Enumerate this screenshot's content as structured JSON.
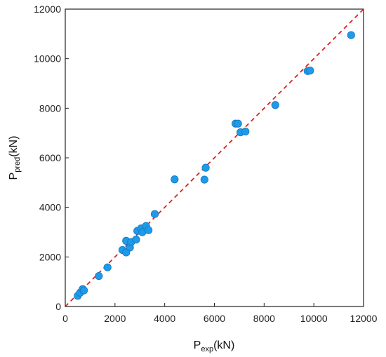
{
  "chart_data": {
    "type": "scatter",
    "title": "",
    "xlabel_main": "P",
    "xlabel_sub": "exp",
    "xlabel_unit": "(kN)",
    "ylabel_main": "P",
    "ylabel_sub": "pred",
    "ylabel_unit": "(kN)",
    "xlim": [
      0,
      12000
    ],
    "ylim": [
      0,
      12000
    ],
    "x_ticks": [
      "0",
      "2000",
      "4000",
      "6000",
      "8000",
      "10000",
      "12000"
    ],
    "y_ticks": [
      "0",
      "2000",
      "4000",
      "6000",
      "8000",
      "10000",
      "12000"
    ],
    "grid": false,
    "reference_line": {
      "type": "y=x",
      "style": "dashed",
      "color": "#e02020"
    },
    "point_color": "#1e9ae8",
    "points": [
      {
        "x": 500,
        "y": 430
      },
      {
        "x": 600,
        "y": 560
      },
      {
        "x": 700,
        "y": 700
      },
      {
        "x": 750,
        "y": 650
      },
      {
        "x": 1350,
        "y": 1230
      },
      {
        "x": 1700,
        "y": 1580
      },
      {
        "x": 2300,
        "y": 2280
      },
      {
        "x": 2450,
        "y": 2180
      },
      {
        "x": 2450,
        "y": 2650
      },
      {
        "x": 2600,
        "y": 2380
      },
      {
        "x": 2650,
        "y": 2600
      },
      {
        "x": 2850,
        "y": 2700
      },
      {
        "x": 2900,
        "y": 3050
      },
      {
        "x": 3050,
        "y": 3150
      },
      {
        "x": 3100,
        "y": 3000
      },
      {
        "x": 3250,
        "y": 3250
      },
      {
        "x": 3350,
        "y": 3080
      },
      {
        "x": 3600,
        "y": 3730
      },
      {
        "x": 4400,
        "y": 5130
      },
      {
        "x": 5600,
        "y": 5120
      },
      {
        "x": 5650,
        "y": 5600
      },
      {
        "x": 6850,
        "y": 7380
      },
      {
        "x": 6950,
        "y": 7380
      },
      {
        "x": 7050,
        "y": 7030
      },
      {
        "x": 7250,
        "y": 7060
      },
      {
        "x": 8450,
        "y": 8130
      },
      {
        "x": 9750,
        "y": 9500
      },
      {
        "x": 9850,
        "y": 9520
      },
      {
        "x": 11500,
        "y": 10950
      }
    ]
  }
}
